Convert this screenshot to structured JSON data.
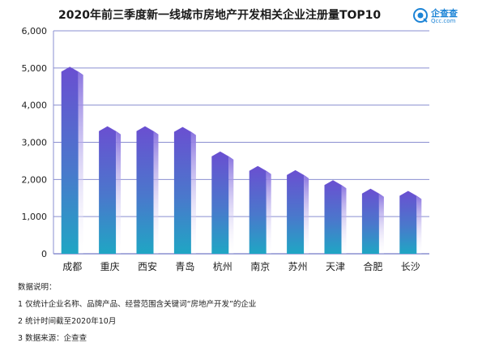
{
  "chart_data": {
    "type": "bar",
    "title": "2020年前三季度新一线城市房地产开发相关企业注册量TOP10",
    "categories": [
      "成都",
      "重庆",
      "西安",
      "青岛",
      "杭州",
      "南京",
      "苏州",
      "天津",
      "合肥",
      "长沙"
    ],
    "values": [
      4900,
      3300,
      3300,
      3280,
      2620,
      2230,
      2120,
      1850,
      1620,
      1560
    ],
    "ylim": [
      0,
      6000
    ],
    "yticks": [
      "0",
      "1,000",
      "2,000",
      "3,000",
      "4,000",
      "5,000",
      "6,000"
    ],
    "ytick_values": [
      0,
      1000,
      2000,
      3000,
      4000,
      5000,
      6000
    ],
    "grid": true,
    "colors": {
      "bar_top": "#6a4fd1",
      "bar_bottom": "#1fa6c4",
      "side": "#a79ae8",
      "grid": "#8a8fd0"
    }
  },
  "brand": {
    "name": "企查查",
    "url": "Qcc.com"
  },
  "notes": {
    "heading": "数据说明：",
    "items": [
      "1 仅统计企业名称、品牌产品、经营范围含关键词“房地产开发”的企业",
      "2 统计时间截至2020年10月",
      "3 数据来源：企查查"
    ]
  }
}
